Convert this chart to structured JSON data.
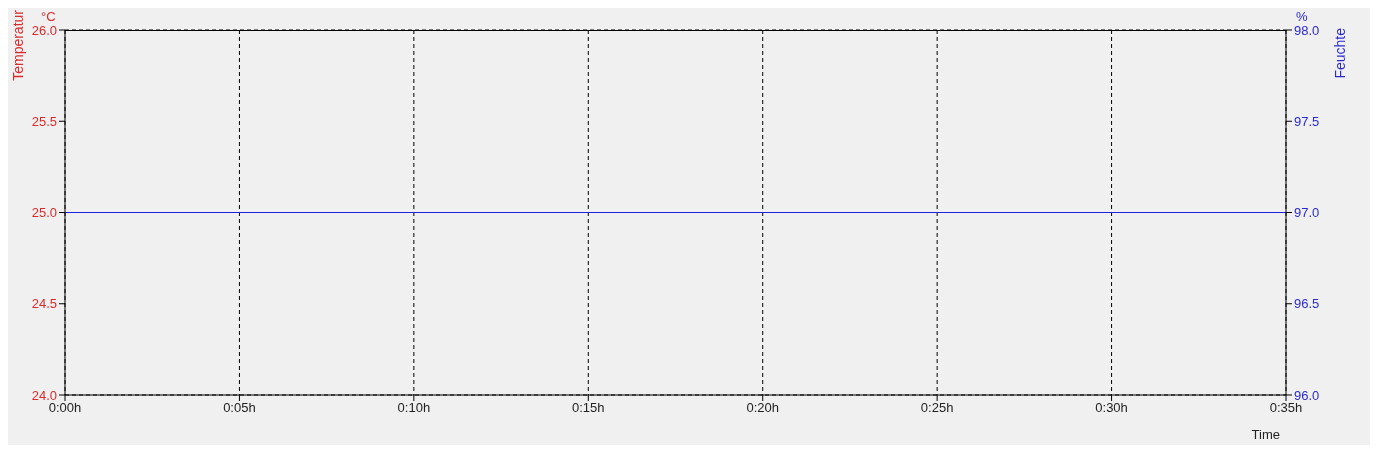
{
  "chart_data": {
    "type": "line",
    "xlabel": "Time",
    "ylabel": "Temperatur",
    "y2label": "Feuchte",
    "annotations": [
      "°C",
      "%"
    ],
    "categories": [
      "0:00h",
      "0:05h",
      "0:10h",
      "0:15h",
      "0:20h",
      "0:25h",
      "0:30h",
      "0:35h"
    ],
    "series": [
      {
        "color": "#2020e0",
        "values": [
          97.0,
          97.0,
          97.0,
          97.0,
          97.0,
          97.0,
          97.0,
          97.0
        ],
        "axis": "y2"
      }
    ],
    "ylim": [
      24,
      26
    ],
    "yticks": [
      {
        "value": 24,
        "label": "24.0"
      },
      {
        "value": 24.5,
        "label": "24.5"
      },
      {
        "value": 25,
        "label": "25.0"
      },
      {
        "value": 25.5,
        "label": "25.5"
      },
      {
        "value": 26,
        "label": "26.0"
      }
    ],
    "y2lim": [
      96,
      98
    ],
    "y2ticks": [
      {
        "value": 96,
        "label": "96.0"
      },
      {
        "value": 96.5,
        "label": "96.5"
      },
      {
        "value": 97,
        "label": "97.0"
      },
      {
        "value": 97.5,
        "label": "97.5"
      },
      {
        "value": 98,
        "label": "98.0"
      }
    ],
    "grid": true,
    "marker": "none",
    "line_style": "solid"
  }
}
